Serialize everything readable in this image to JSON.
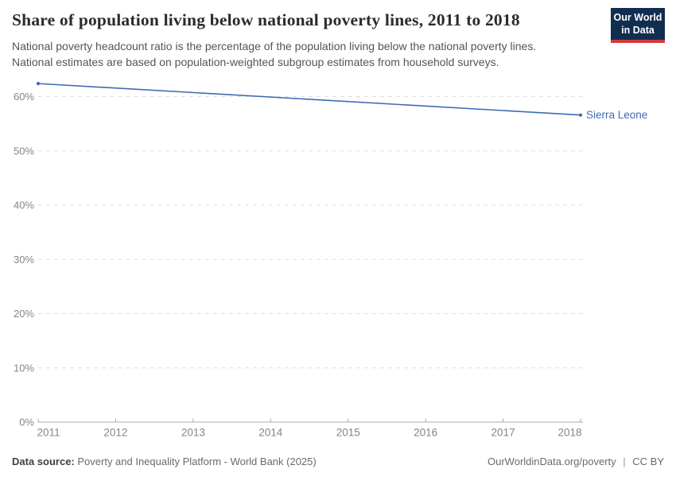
{
  "header": {
    "title": "Share of population living below national poverty lines, 2011 to 2018",
    "subtitle_lines": [
      "National poverty headcount ratio is the percentage of the population living below the national poverty lines.",
      "National estimates are based on population-weighted subgroup estimates from household surveys."
    ],
    "logo": {
      "line1": "Our World",
      "line2": "in Data",
      "bg_color": "#112e51",
      "bar_color": "#d43b3b",
      "text_color": "#ffffff"
    }
  },
  "chart_data": {
    "type": "line",
    "title": "Share of population living below national poverty lines, 2011 to 2018",
    "xlabel": "",
    "ylabel": "",
    "xlim": [
      2011,
      2018
    ],
    "ylim": [
      0,
      64
    ],
    "x_ticks": [
      2011,
      2012,
      2013,
      2014,
      2015,
      2016,
      2017,
      2018
    ],
    "y_ticks": [
      0,
      10,
      20,
      30,
      40,
      50,
      60
    ],
    "y_suffix": "%",
    "grid": "horizontal-dashed",
    "legend_position": "end-of-line-label",
    "series": [
      {
        "name": "Sierra Leone",
        "color": "#3d6bb3",
        "points": [
          {
            "x": 2011,
            "y": 62.4
          },
          {
            "x": 2018,
            "y": 56.6
          }
        ]
      }
    ],
    "colors": {
      "grid": "#dedede",
      "axis": "#a8a8a8",
      "tick_label": "#858585"
    }
  },
  "footer": {
    "data_source_label": "Data source:",
    "data_source_text": "Poverty and Inequality Platform - World Bank (2025)",
    "credit_url": "OurWorldinData.org/poverty",
    "divider": "|",
    "license": "CC BY"
  }
}
